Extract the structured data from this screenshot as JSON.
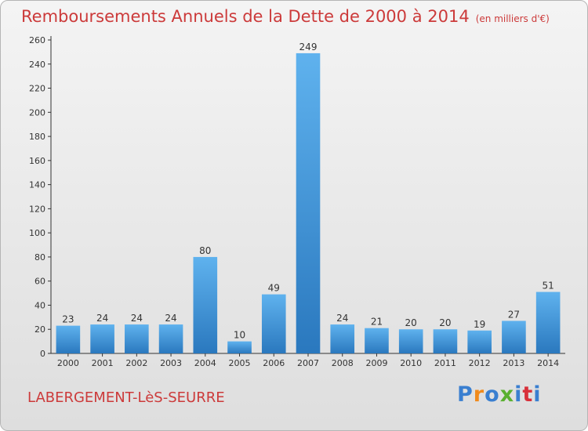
{
  "title": "Remboursements Annuels de la Dette de 2000 à 2014",
  "subtitle": "(en milliers d'€)",
  "city": "LABERGEMENT-LèS-SEURRE",
  "logo": {
    "text": "Proxiti",
    "letter_colors": [
      "#3a7fd0",
      "#f08a1c",
      "#3a7fd0",
      "#5ab030",
      "#3a7fd0",
      "#d8303a",
      "#3a7fd0"
    ]
  },
  "colors": {
    "title": "#cc3a3a",
    "bar_top": "#5fb2ee",
    "bar_bottom": "#2a78be",
    "axis": "#333333",
    "grid": "#c8c8c8"
  },
  "chart_data": {
    "type": "bar",
    "title": "Remboursements Annuels de la Dette de 2000 à 2014",
    "subtitle": "(en milliers d'€)",
    "categories": [
      "2000",
      "2001",
      "2002",
      "2003",
      "2004",
      "2005",
      "2006",
      "2007",
      "2008",
      "2009",
      "2010",
      "2011",
      "2012",
      "2013",
      "2014"
    ],
    "values": [
      23,
      24,
      24,
      24,
      80,
      10,
      49,
      249,
      24,
      21,
      20,
      20,
      19,
      27,
      51
    ],
    "ylim": [
      0,
      260
    ],
    "yticks": [
      0,
      20,
      40,
      60,
      80,
      100,
      120,
      140,
      160,
      180,
      200,
      220,
      240,
      260
    ],
    "grid": false,
    "data_labels": true
  }
}
